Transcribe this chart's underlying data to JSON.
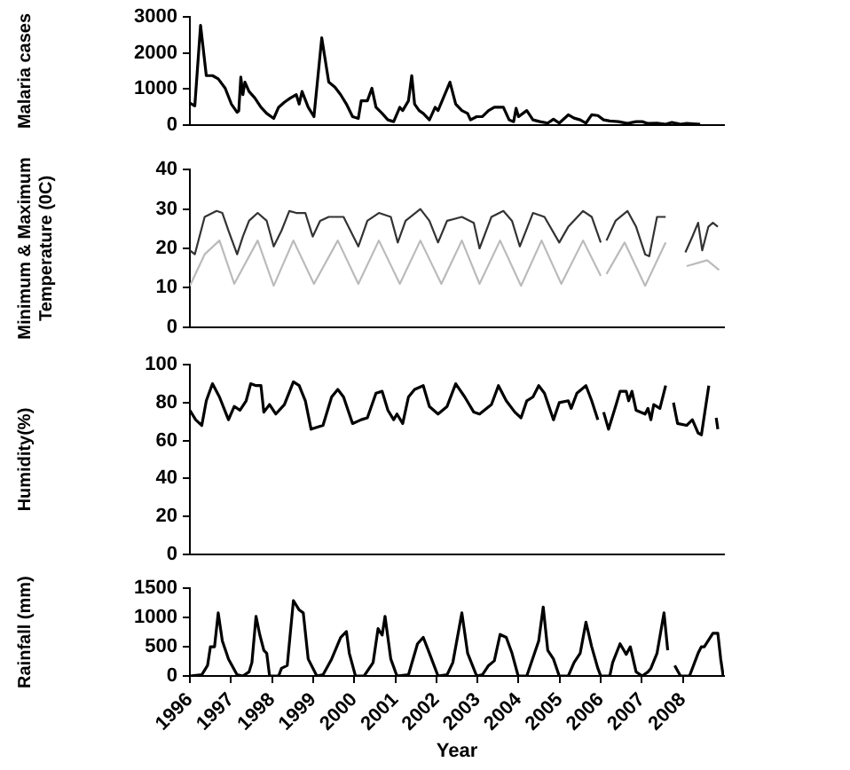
{
  "chart_data": [
    {
      "type": "line",
      "ylabel": "Malaria cases",
      "xlim": [
        1996,
        2009
      ],
      "ylim": [
        0,
        3000
      ],
      "yticks": [
        0,
        1000,
        2000,
        3000
      ],
      "grid": false,
      "legend": false,
      "marker": "none",
      "line_style": "solid",
      "tick_labels": "y",
      "series": [
        {
          "color": "#000000",
          "x": [
            1996.0,
            1996.12,
            1996.26,
            1996.4,
            1996.55,
            1996.69,
            1996.86,
            1997.01,
            1997.15,
            1997.19,
            1997.24,
            1997.29,
            1997.34,
            1997.44,
            1997.58,
            1997.73,
            1997.87,
            1998.04,
            1998.16,
            1998.3,
            1998.45,
            1998.59,
            1998.66,
            1998.73,
            1998.88,
            1999.02,
            1999.21,
            1999.38,
            1999.53,
            1999.67,
            1999.81,
            1999.96,
            2000.1,
            2000.17,
            2000.32,
            2000.43,
            2000.53,
            2000.68,
            2000.82,
            2000.96,
            2001.11,
            2001.18,
            2001.32,
            2001.4,
            2001.47,
            2001.58,
            2001.68,
            2001.83,
            2001.97,
            2002.04,
            2002.33,
            2002.47,
            2002.62,
            2002.76,
            2002.83,
            2002.98,
            2003.12,
            2003.27,
            2003.41,
            2003.63,
            2003.77,
            2003.88,
            2003.94,
            2004.0,
            2004.14,
            2004.2,
            2004.35,
            2004.52,
            2004.71,
            2004.85,
            2004.99,
            2005.21,
            2005.35,
            2005.5,
            2005.64,
            2005.78,
            2005.93,
            2006.07,
            2006.22,
            2006.43,
            2006.65,
            2006.86,
            2007.01,
            2007.15,
            2007.37,
            2007.58,
            2007.73,
            2007.94,
            2008.09,
            2008.42
          ],
          "values": [
            610,
            530,
            2770,
            1370,
            1370,
            1280,
            1020,
            580,
            350,
            390,
            1330,
            840,
            1190,
            930,
            750,
            490,
            320,
            180,
            490,
            630,
            750,
            840,
            580,
            930,
            490,
            230,
            2420,
            1190,
            1050,
            840,
            580,
            230,
            180,
            670,
            670,
            1020,
            490,
            320,
            140,
            90,
            490,
            400,
            670,
            1370,
            580,
            400,
            320,
            140,
            490,
            400,
            1190,
            580,
            400,
            320,
            140,
            230,
            230,
            400,
            490,
            490,
            140,
            90,
            460,
            230,
            350,
            400,
            140,
            90,
            50,
            160,
            50,
            280,
            190,
            140,
            50,
            280,
            260,
            140,
            110,
            90,
            40,
            90,
            90,
            40,
            50,
            20,
            70,
            20,
            40,
            20
          ]
        }
      ]
    },
    {
      "type": "line",
      "ylabel": "Minimum & Maximum\nTemperature (0C)",
      "xlim": [
        1996,
        2009
      ],
      "ylim": [
        0,
        40
      ],
      "yticks": [
        0,
        10,
        20,
        30,
        40
      ],
      "grid": false,
      "legend": false,
      "marker": "none",
      "line_style": "solid",
      "tick_labels": "y",
      "series": [
        {
          "color": "#333333",
          "x": [
            1996.0,
            1996.12,
            1996.36,
            1996.65,
            1996.79,
            1996.94,
            1997.15,
            1997.29,
            1997.44,
            1997.65,
            1997.87,
            1998.04,
            1998.23,
            1998.42,
            1998.59,
            1998.81,
            1998.99,
            1999.17,
            1999.38,
            1999.74,
            2000.1,
            2000.32,
            2000.6,
            2000.89,
            2001.06,
            2001.25,
            2001.61,
            2001.83,
            2002.04,
            2002.26,
            2002.62,
            2002.91,
            2003.05,
            2003.34,
            2003.63,
            2003.84,
            2004.03,
            2004.2,
            2004.35,
            2004.63,
            2004.99,
            2005.21,
            2005.57,
            2005.78,
            2006.0,
            2006.07,
            2006.14,
            2006.36,
            2006.65,
            2006.86,
            2007.08,
            2007.18,
            2007.37,
            2007.58,
            2007.8,
            2008.06,
            2008.23,
            2008.37,
            2008.47,
            2008.62,
            2008.73,
            2008.85
          ],
          "values": [
            19.5,
            18.5,
            28,
            29.5,
            29,
            24.5,
            18.5,
            23,
            27,
            29,
            27,
            20.5,
            24.5,
            29.5,
            29,
            29,
            23,
            27,
            28,
            28,
            20.5,
            27,
            29,
            28,
            21.5,
            27,
            30,
            27,
            21.5,
            27,
            28,
            26.5,
            20,
            28,
            29.5,
            27,
            20.5,
            25,
            29,
            28,
            21.5,
            25.5,
            29.5,
            28,
            21.5,
            null,
            22,
            27,
            29.5,
            25.5,
            18.5,
            18,
            28,
            28,
            null,
            19,
            23,
            26.5,
            19.5,
            25.5,
            26.5,
            25.5
          ]
        },
        {
          "color": "#bbbbbb",
          "x": [
            1996.0,
            1996.36,
            1996.72,
            1997.08,
            1997.65,
            1998.04,
            1998.52,
            1999.02,
            1999.6,
            2000.1,
            2000.6,
            2001.11,
            2001.61,
            2002.12,
            2002.62,
            2003.05,
            2003.55,
            2004.06,
            2004.56,
            2005.04,
            2005.57,
            2006.0,
            2006.07,
            2006.14,
            2006.58,
            2007.08,
            2007.58,
            2007.8,
            2008.09,
            2008.59,
            2008.88
          ],
          "values": [
            10.5,
            18.5,
            22,
            11,
            22,
            10.5,
            22,
            11,
            22,
            11,
            22,
            11,
            22,
            11,
            22,
            11,
            22,
            10.5,
            22,
            11,
            22,
            13,
            null,
            13.5,
            21.5,
            10.5,
            21.5,
            null,
            15.5,
            17,
            14.5
          ]
        }
      ]
    },
    {
      "type": "line",
      "ylabel": "Humidity(%)",
      "xlim": [
        1996,
        2009
      ],
      "ylim": [
        0,
        100
      ],
      "yticks": [
        0,
        20,
        40,
        60,
        80,
        100
      ],
      "grid": false,
      "legend": false,
      "marker": "none",
      "line_style": "solid",
      "tick_labels": "y",
      "series": [
        {
          "color": "#000000",
          "x": [
            1996.0,
            1996.14,
            1996.29,
            1996.4,
            1996.55,
            1996.72,
            1996.94,
            1997.08,
            1997.22,
            1997.37,
            1997.48,
            1997.61,
            1997.73,
            1997.8,
            1997.94,
            1998.09,
            1998.3,
            1998.52,
            1998.66,
            1998.81,
            1998.95,
            1999.24,
            1999.45,
            1999.6,
            1999.74,
            1999.96,
            2000.17,
            2000.32,
            2000.53,
            2000.68,
            2000.82,
            2000.96,
            2001.04,
            2001.18,
            2001.32,
            2001.47,
            2001.68,
            2001.83,
            2002.04,
            2002.26,
            2002.47,
            2002.69,
            2002.91,
            2003.05,
            2003.34,
            2003.51,
            2003.7,
            2003.91,
            2004.06,
            2004.2,
            2004.35,
            2004.49,
            2004.63,
            2004.85,
            2004.99,
            2005.21,
            2005.28,
            2005.42,
            2005.64,
            2005.78,
            2005.93,
            2006.0,
            2006.07,
            2006.19,
            2006.36,
            2006.47,
            2006.62,
            2006.68,
            2006.76,
            2006.86,
            2007.08,
            2007.15,
            2007.22,
            2007.29,
            2007.44,
            2007.58,
            2007.68,
            2007.77,
            2007.87,
            2008.09,
            2008.23,
            2008.37,
            2008.45,
            2008.63,
            2008.72,
            2008.81,
            2008.85
          ],
          "values": [
            76,
            71,
            68,
            81,
            90,
            83,
            71,
            78,
            76,
            81,
            90,
            89,
            89,
            75,
            79,
            74,
            79,
            91,
            89,
            81,
            66,
            68,
            83,
            87,
            83,
            69,
            71,
            72,
            85,
            86,
            76,
            71,
            74,
            69,
            83,
            87,
            89,
            78,
            74,
            78,
            90,
            83,
            75,
            74,
            79,
            89,
            81,
            75,
            72,
            81,
            83,
            89,
            85,
            71,
            80,
            81,
            77,
            85,
            89,
            81,
            71,
            null,
            75,
            66,
            78,
            86,
            86,
            81,
            86,
            76,
            74,
            77,
            71,
            79,
            77,
            89,
            null,
            80,
            69,
            68,
            71,
            64,
            63,
            89,
            null,
            72,
            66
          ]
        }
      ]
    },
    {
      "type": "line",
      "ylabel": "Rainfall (mm)",
      "xlabel": "Year",
      "xlim": [
        1996,
        2009
      ],
      "xticks": [
        1996,
        1997,
        1998,
        1999,
        2000,
        2001,
        2002,
        2003,
        2004,
        2005,
        2006,
        2007,
        2008
      ],
      "ylim": [
        0,
        1500
      ],
      "yticks": [
        0,
        500,
        1000,
        1500
      ],
      "grid": false,
      "legend": false,
      "marker": "none",
      "line_style": "solid",
      "series": [
        {
          "color": "#000000",
          "x": [
            1996.0,
            1996.29,
            1996.43,
            1996.5,
            1996.6,
            1996.69,
            1996.79,
            1996.94,
            1997.15,
            1997.29,
            1997.44,
            1997.51,
            1997.61,
            1997.7,
            1997.8,
            1997.87,
            1997.94,
            1998.16,
            1998.23,
            1998.37,
            1998.52,
            1998.66,
            1998.76,
            1998.88,
            1999.09,
            1999.24,
            1999.45,
            1999.67,
            1999.81,
            1999.88,
            2000.03,
            2000.24,
            2000.46,
            2000.58,
            2000.68,
            2000.75,
            2000.89,
            2001.04,
            2001.32,
            2001.54,
            2001.68,
            2001.83,
            2002.04,
            2002.26,
            2002.4,
            2002.62,
            2002.76,
            2002.98,
            2003.12,
            2003.27,
            2003.41,
            2003.55,
            2003.7,
            2003.84,
            2003.99,
            2004.2,
            2004.49,
            2004.6,
            2004.71,
            2004.85,
            2004.99,
            2005.21,
            2005.35,
            2005.5,
            2005.64,
            2005.78,
            2005.93,
            2006.0,
            2006.22,
            2006.29,
            2006.47,
            2006.62,
            2006.72,
            2006.86,
            2007.01,
            2007.15,
            2007.22,
            2007.37,
            2007.54,
            2007.63,
            2007.72,
            2007.8,
            2007.94,
            2008.16,
            2008.37,
            2008.45,
            2008.52,
            2008.73,
            2008.85,
            2008.92,
            2008.98
          ],
          "values": [
            0,
            20,
            180,
            500,
            500,
            1080,
            600,
            290,
            20,
            0,
            70,
            230,
            1020,
            710,
            440,
            390,
            0,
            0,
            130,
            180,
            1290,
            1130,
            1080,
            290,
            0,
            20,
            290,
            660,
            760,
            390,
            0,
            0,
            230,
            810,
            700,
            1020,
            290,
            0,
            20,
            550,
            660,
            390,
            0,
            20,
            230,
            1080,
            390,
            0,
            20,
            180,
            260,
            710,
            660,
            390,
            0,
            0,
            600,
            1180,
            440,
            290,
            0,
            0,
            230,
            390,
            920,
            500,
            130,
            0,
            0,
            230,
            550,
            370,
            500,
            70,
            0,
            70,
            130,
            390,
            1080,
            440,
            null,
            180,
            0,
            0,
            390,
            500,
            500,
            730,
            730,
            290,
            0
          ]
        }
      ]
    }
  ]
}
